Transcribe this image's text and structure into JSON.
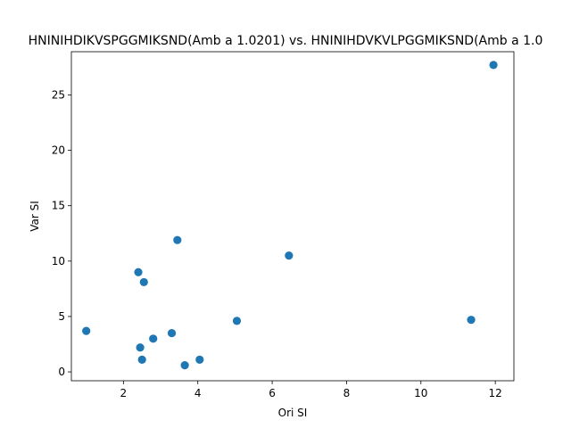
{
  "chart_data": {
    "type": "scatter",
    "title": "HNINIHDIKVSPGGMIKSND(Amb a 1.0201) vs. HNINIHDVKVLPGGMIKSND(Amb a 1.0",
    "xlabel": "Ori SI",
    "ylabel": "Var SI",
    "xlim": [
      0.6,
      12.5
    ],
    "ylim": [
      -0.8,
      28.9
    ],
    "xticks": [
      2,
      4,
      6,
      8,
      10,
      12
    ],
    "yticks": [
      0,
      5,
      10,
      15,
      20,
      25
    ],
    "grid": false,
    "marker_color": "#1f77b4",
    "points": [
      {
        "x": 1.0,
        "y": 3.7
      },
      {
        "x": 2.4,
        "y": 9.0
      },
      {
        "x": 2.55,
        "y": 8.1
      },
      {
        "x": 2.45,
        "y": 2.2
      },
      {
        "x": 2.5,
        "y": 1.1
      },
      {
        "x": 2.8,
        "y": 3.0
      },
      {
        "x": 3.3,
        "y": 3.5
      },
      {
        "x": 3.45,
        "y": 11.9
      },
      {
        "x": 3.65,
        "y": 0.6
      },
      {
        "x": 4.05,
        "y": 1.1
      },
      {
        "x": 5.05,
        "y": 4.6
      },
      {
        "x": 6.45,
        "y": 10.5
      },
      {
        "x": 11.35,
        "y": 4.7
      },
      {
        "x": 11.95,
        "y": 27.7
      }
    ]
  }
}
